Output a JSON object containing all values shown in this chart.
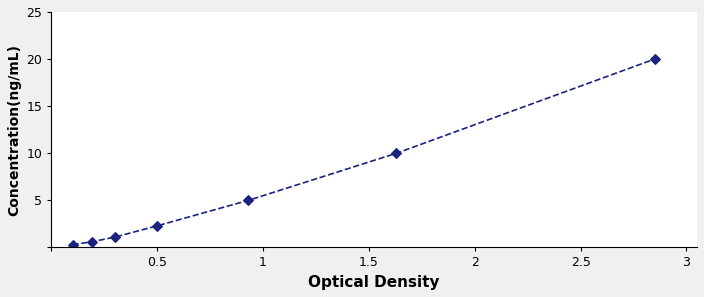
{
  "x": [
    0.1,
    0.19,
    0.3,
    0.5,
    0.93,
    1.63,
    2.85
  ],
  "y": [
    0.3,
    0.6,
    1.1,
    2.3,
    5.0,
    10.0,
    20.0
  ],
  "line_color": "#1a237e",
  "marker_color": "#1a237e",
  "marker": "D",
  "marker_size": 5,
  "line_style": "--",
  "line_width": 1.2,
  "xlabel": "Optical Density",
  "ylabel": "Concentration(ng/mL)",
  "xlim": [
    0.05,
    3.05
  ],
  "ylim": [
    0,
    25
  ],
  "xticks": [
    0,
    0.5,
    1,
    1.5,
    2,
    2.5,
    3
  ],
  "yticks": [
    0,
    5,
    10,
    15,
    20,
    25
  ],
  "xtick_labels": [
    "",
    "0.5",
    "1",
    "1.5",
    "2",
    "2.5",
    "3"
  ],
  "ytick_labels": [
    "",
    "5",
    "10",
    "15",
    "20",
    "25"
  ],
  "background_color": "#ffffff",
  "figure_background": "#f0f0f0",
  "xlabel_fontsize": 11,
  "ylabel_fontsize": 10,
  "tick_fontsize": 9
}
